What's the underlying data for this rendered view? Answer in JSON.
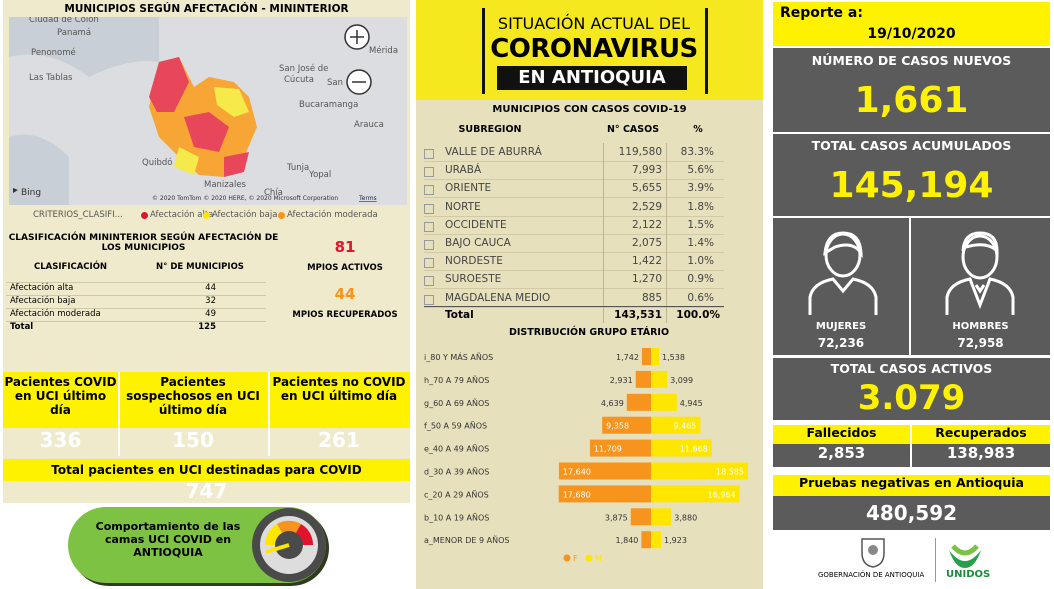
{
  "left": {
    "title": "MUNICIPIOS SEGÚN AFECTACIÓN - MININTERIOR",
    "map": {
      "labels": [
        "Ciudad de Colón",
        "Panamá",
        "Penonomé",
        "Las Tablas",
        "Mérida",
        "San José de",
        "Cúcuta",
        "San",
        "Bucaramanga",
        "Arauca",
        "Quibdó",
        "Tunja",
        "Yopal",
        "Manizales",
        "Chía"
      ],
      "provider": "Bing",
      "copyright": "© 2020 TomTom © 2020 HERE, © 2020 Microsoft Corporation",
      "terms": "Terms"
    },
    "legend": {
      "title": "CRITERIOS_CLASIFI...",
      "items": [
        "Afectación alta",
        "Afectación baja",
        "Afectación moderada"
      ]
    },
    "classification": {
      "title": "CLASIFICACIÓN MININTERIOR SEGÚN AFECTACIÓN DE LOS MUNICIPIOS",
      "headers": [
        "CLASIFICACIÓN",
        "N° DE MUNICIPIOS"
      ],
      "rows": [
        [
          "Afectación alta",
          "44"
        ],
        [
          "Afectación baja",
          "32"
        ],
        [
          "Afectación moderada",
          "49"
        ],
        [
          "Total",
          "125"
        ]
      ]
    },
    "municipios": {
      "active": "81",
      "active_label": "MPIOS ACTIVOS",
      "recovered": "44",
      "recovered_label": "MPIOS RECUPERADOS"
    },
    "uci": {
      "headers": [
        "Pacientes COVID en UCI último día",
        "Pacientes sospechosos en UCI último día",
        "Pacientes no COVID en UCI último día"
      ],
      "values": [
        "336",
        "150",
        "261"
      ],
      "total_label": "Total pacientes en UCI destinadas para COVID",
      "total": "747"
    },
    "button": "Comportamiento de las camas UCI COVID en ANTIOQUIA"
  },
  "middle": {
    "logo": [
      "SITUACIÓN ACTUAL DEL",
      "CORONAVIRUS",
      "EN ANTIOQUIA"
    ],
    "table": {
      "title": "MUNICIPIOS CON CASOS COVID-19",
      "headers": [
        "SUBREGION",
        "N° CASOS",
        "%"
      ],
      "rows": [
        [
          "VALLE DE ABURRÁ",
          "119,580",
          "83.3%"
        ],
        [
          "URABÁ",
          "7,993",
          "5.6%"
        ],
        [
          "ORIENTE",
          "5,655",
          "3.9%"
        ],
        [
          "NORTE",
          "2,529",
          "1.8%"
        ],
        [
          "OCCIDENTE",
          "2,122",
          "1.5%"
        ],
        [
          "BAJO CAUCA",
          "2,075",
          "1.4%"
        ],
        [
          "NORDESTE",
          "1,422",
          "1.0%"
        ],
        [
          "SUROESTE",
          "1,270",
          "0.9%"
        ],
        [
          "MAGDALENA MEDIO",
          "885",
          "0.6%"
        ]
      ],
      "total": [
        "Total",
        "143,531",
        "100.0%"
      ]
    }
  },
  "chart_data": {
    "type": "pyramid",
    "title": "DISTRIBUCIÓN GRUPO ETÁRIO",
    "categories": [
      "i_80 Y MÁS AÑOS",
      "h_70 A 79 AÑOS",
      "g_60 A 69 AÑOS",
      "f_50 A 59 AÑOS",
      "e_40 A 49 AÑOS",
      "d_30 A 39 AÑOS",
      "c_20 A 29 AÑOS",
      "b_10 A 19 AÑOS",
      "a_MENOR DE 9 AÑOS"
    ],
    "series": [
      {
        "name": "F",
        "color": "#f7941d",
        "values": [
          1742,
          2931,
          4639,
          9358,
          11709,
          17640,
          17680,
          3875,
          1840
        ],
        "value_labels": [
          "1,742",
          "2,931",
          "4,639",
          "9,358",
          "11,709",
          "17,640",
          "17,680",
          "3,875",
          "1,840"
        ]
      },
      {
        "name": "M",
        "color": "#ffe600",
        "values": [
          1538,
          3099,
          4945,
          9465,
          11668,
          18585,
          16964,
          3880,
          1923
        ],
        "value_labels": [
          "1,538",
          "3,099",
          "4,945",
          "9,465",
          "11,668",
          "18,585",
          "16,964",
          "3,880",
          "1,923"
        ]
      }
    ]
  },
  "right": {
    "report_label": "Reporte a:",
    "date": "19/10/2020",
    "new_cases": {
      "label": "NÚMERO DE CASOS NUEVOS",
      "value": "1,661"
    },
    "total_cases": {
      "label": "TOTAL CASOS ACUMULADOS",
      "value": "145,194"
    },
    "women": {
      "label": "MUJERES",
      "value": "72,236"
    },
    "men": {
      "label": "HOMBRES",
      "value": "72,958"
    },
    "active": {
      "label": "TOTAL CASOS ACTIVOS",
      "value": "3.079"
    },
    "deaths": {
      "label": "Fallecidos",
      "value": "2,853"
    },
    "recovered": {
      "label": "Recuperados",
      "value": "138,983"
    },
    "negative_tests": {
      "label": "Pruebas negativas en Antioquia",
      "value": "480,592"
    },
    "logos": [
      "GOBERNACIÓN DE ANTIOQUIA",
      "UNIDOS"
    ]
  }
}
